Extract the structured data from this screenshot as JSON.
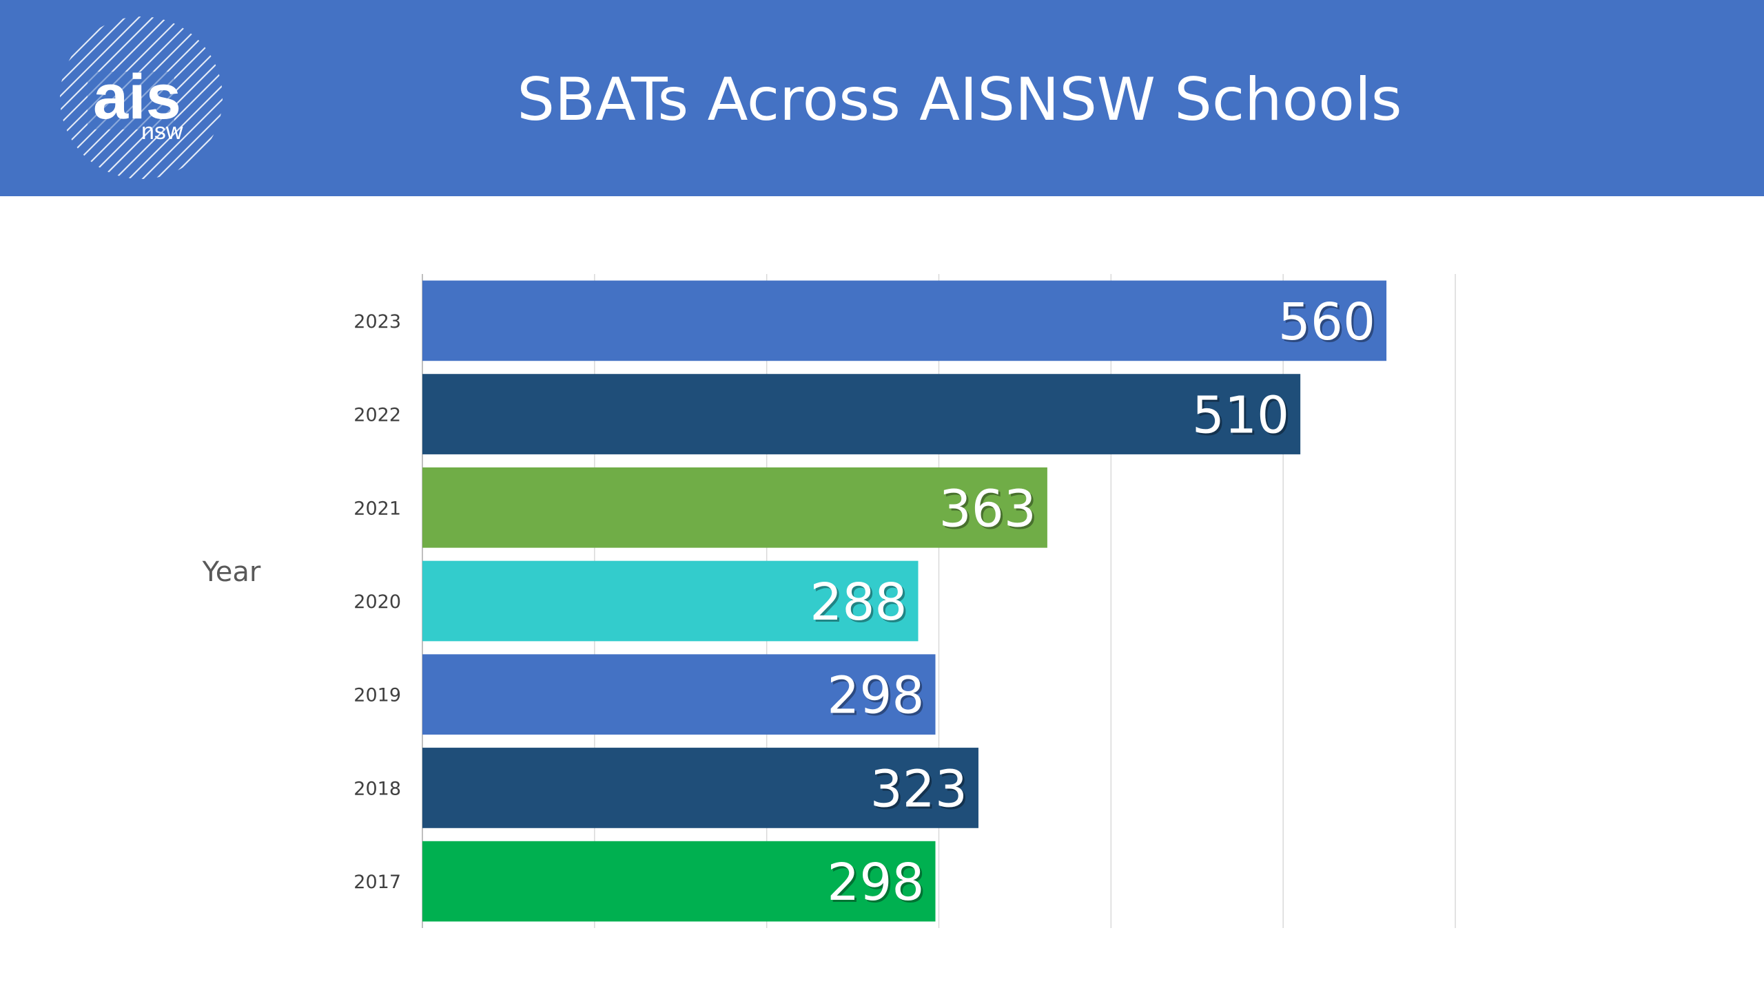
{
  "header": {
    "title": "SBATs Across AISNSW Schools",
    "background_color": "#4472c4"
  },
  "logo": {
    "text": "ais",
    "subtext": "nsw",
    "icon": "ais-nsw-logo-icon"
  },
  "chart_data": {
    "type": "bar",
    "orientation": "horizontal",
    "title": "",
    "ylabel": "Year",
    "xlabel": "",
    "categories": [
      "2023",
      "2022",
      "2021",
      "2020",
      "2019",
      "2018",
      "2017"
    ],
    "values": [
      560,
      510,
      363,
      288,
      298,
      323,
      298
    ],
    "data_labels": [
      "560",
      "510",
      "363",
      "288",
      "298",
      "323",
      "298"
    ],
    "colors": [
      "#4472c4",
      "#1f4e79",
      "#70ad47",
      "#33cccc",
      "#4472c4",
      "#1f4e79",
      "#00b050"
    ],
    "xlim": [
      0,
      600
    ],
    "x_gridline_step": 100,
    "x_tick_labels_shown": false,
    "grid": true,
    "legend": "none"
  }
}
